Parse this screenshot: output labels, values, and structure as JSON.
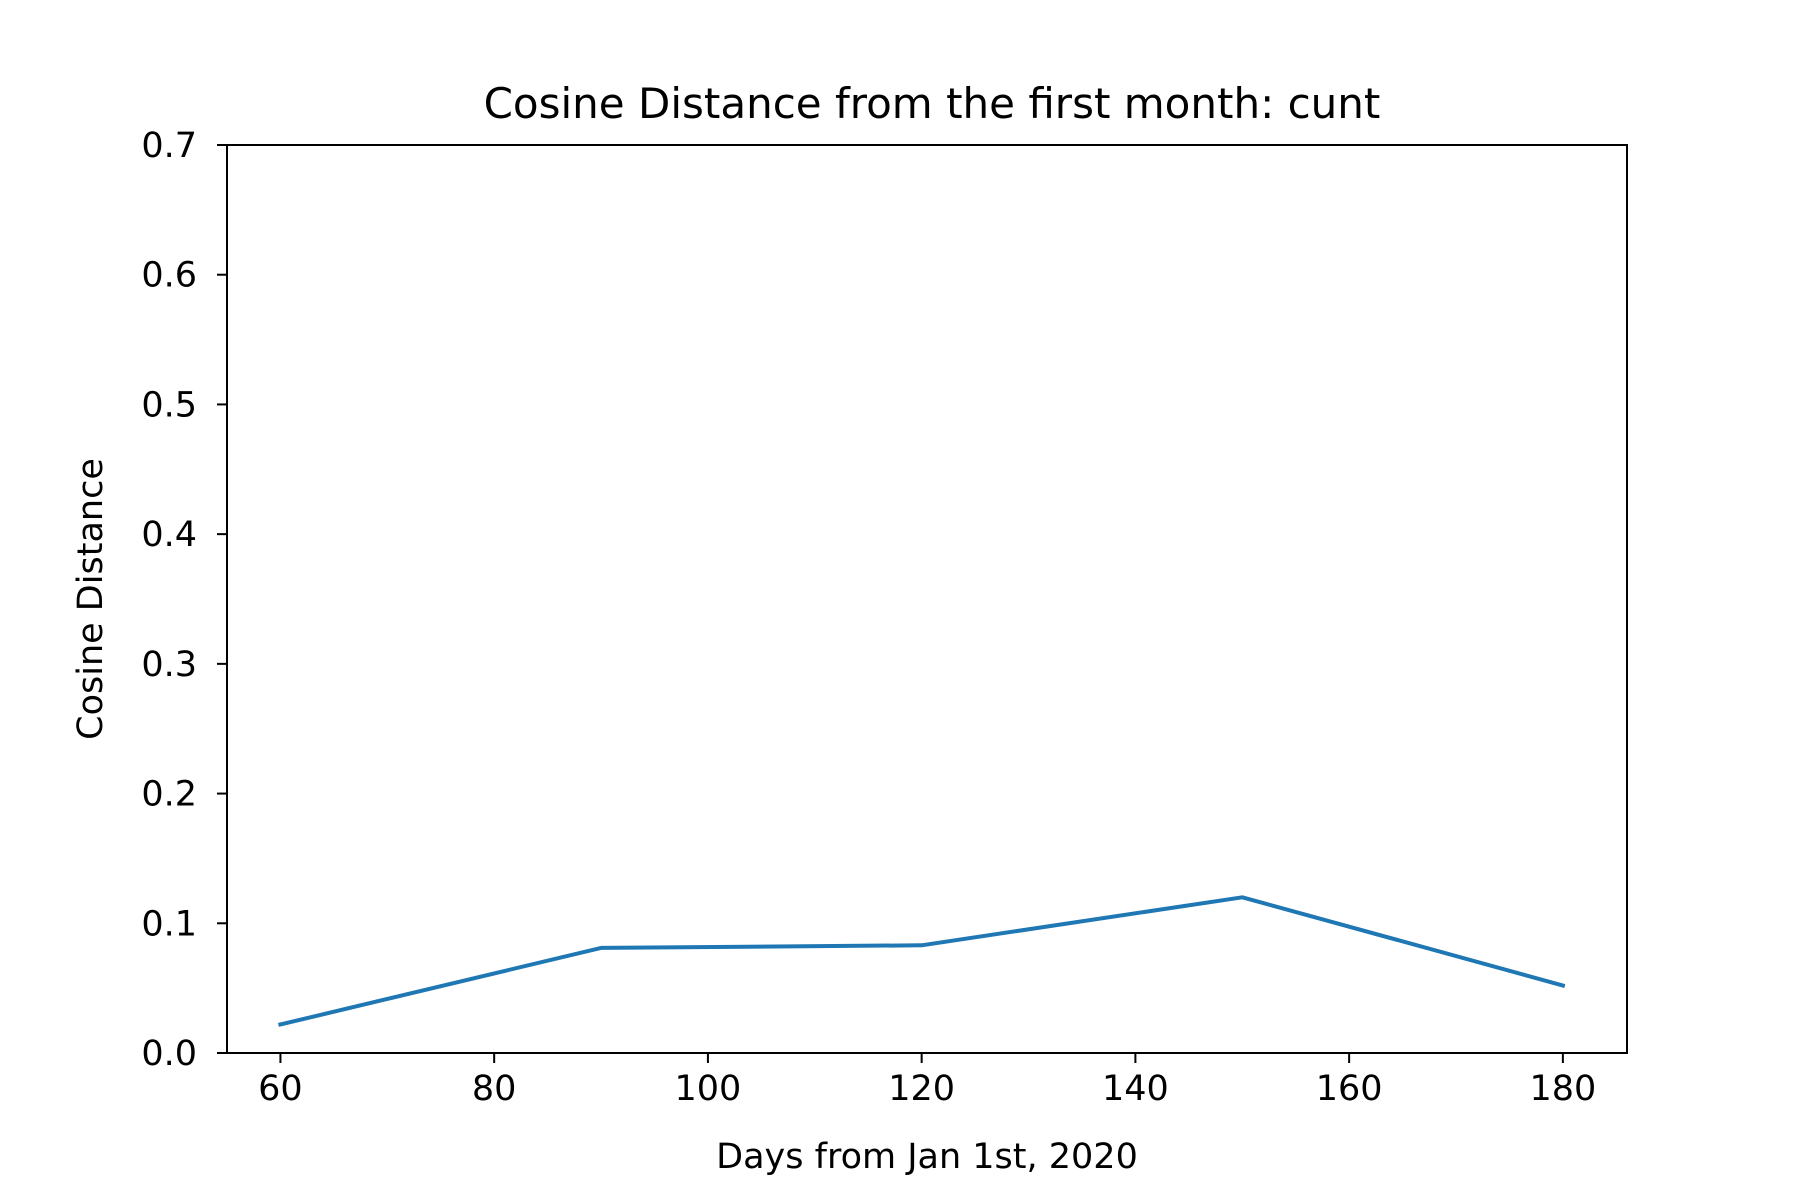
{
  "chart_data": {
    "type": "line",
    "title": "Cosine Distance from the first month: cunt",
    "xlabel": "Days from Jan 1st, 2020",
    "ylabel": "Cosine Distance",
    "xlim": [
      55,
      186
    ],
    "ylim": [
      0.0,
      0.7
    ],
    "xticks": [
      60,
      80,
      100,
      120,
      140,
      160,
      180
    ],
    "xtick_labels": [
      "60",
      "80",
      "100",
      "120",
      "140",
      "160",
      "180"
    ],
    "yticks": [
      0.0,
      0.1,
      0.2,
      0.3,
      0.4,
      0.5,
      0.6,
      0.7
    ],
    "ytick_labels": [
      "0.0",
      "0.1",
      "0.2",
      "0.3",
      "0.4",
      "0.5",
      "0.6",
      "0.7"
    ],
    "grid": false,
    "series": [
      {
        "color": "#1f77b4",
        "x": [
          60,
          90,
          120,
          150,
          180
        ],
        "y": [
          0.022,
          0.081,
          0.083,
          0.12,
          0.052
        ]
      }
    ]
  }
}
